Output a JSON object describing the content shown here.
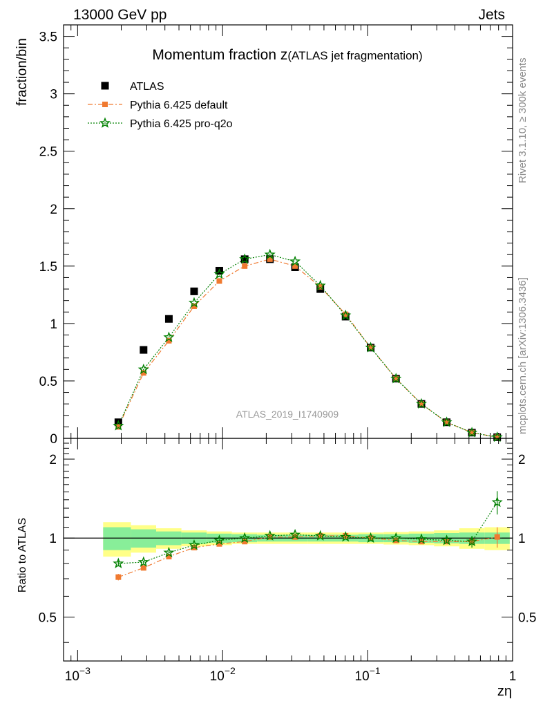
{
  "header": {
    "left": "13000 GeV pp",
    "right": "Jets"
  },
  "side_labels": {
    "rivet": "Rivet 3.1.10, ≥ 300k events",
    "mcplots": "mcplots.cern.ch [arXiv:1306.3436]"
  },
  "chart_data": [
    {
      "type": "scatter",
      "title_main": "Momentum fraction ",
      "title_var": "z",
      "title_sub": "(ATLAS jet fragmentation)",
      "watermark": "ATLAS_2019_I1740909",
      "ylabel": "fraction/bin",
      "xscale": "log",
      "xlim": [
        0.0008,
        1
      ],
      "ylim": [
        0,
        3.6
      ],
      "yticks": [
        "0",
        "0.5",
        "1",
        "1.5",
        "2",
        "2.5",
        "3",
        "3.5"
      ],
      "ytick_values": [
        0,
        0.5,
        1,
        1.5,
        2,
        2.5,
        3,
        3.5
      ],
      "legend_position": "top-left",
      "x": [
        0.00191,
        0.00285,
        0.00426,
        0.00636,
        0.00949,
        0.0142,
        0.0212,
        0.0316,
        0.0472,
        0.0705,
        0.105,
        0.157,
        0.235,
        0.351,
        0.524,
        0.783
      ],
      "series": [
        {
          "name": "ATLAS",
          "color": "#000000",
          "marker": "square",
          "values": [
            0.14,
            0.77,
            1.04,
            1.28,
            1.46,
            1.56,
            1.56,
            1.49,
            1.3,
            1.06,
            0.79,
            0.52,
            0.3,
            0.14,
            0.05,
            0.01
          ]
        },
        {
          "name": "Pythia 6.425 default",
          "color": "#f07a30",
          "marker": "square",
          "line": "dashdot",
          "values": [
            0.1,
            0.57,
            0.85,
            1.15,
            1.37,
            1.5,
            1.56,
            1.5,
            1.32,
            1.08,
            0.79,
            0.52,
            0.3,
            0.14,
            0.05,
            0.01
          ]
        },
        {
          "name": "Pythia 6.425 pro-q2o",
          "color": "#008000",
          "marker": "star",
          "line": "dotted",
          "values": [
            0.11,
            0.6,
            0.88,
            1.18,
            1.43,
            1.56,
            1.6,
            1.54,
            1.33,
            1.07,
            0.79,
            0.52,
            0.3,
            0.14,
            0.05,
            0.01
          ]
        }
      ]
    },
    {
      "type": "scatter",
      "ylabel": "Ratio to ATLAS",
      "xlabel": "zη",
      "xscale": "log",
      "xlim": [
        0.0008,
        1
      ],
      "ylim": [
        0.34,
        2.4
      ],
      "yticks": [
        "0.5",
        "1",
        "2"
      ],
      "ytick_values": [
        0.5,
        1,
        2
      ],
      "yticks_right": [
        "0.5",
        "1",
        "2"
      ],
      "xticks": [
        "10",
        "10",
        "10",
        "1"
      ],
      "xtick_exponents": [
        "−3",
        "−2",
        "−1",
        ""
      ],
      "xtick_values": [
        0.001,
        0.01,
        0.1,
        1
      ],
      "bins": [
        0.0015,
        0.00233,
        0.00348,
        0.0052,
        0.00777,
        0.0116,
        0.0173,
        0.0259,
        0.0386,
        0.0577,
        0.0862,
        0.129,
        0.192,
        0.287,
        0.429,
        0.64,
        0.955
      ],
      "band_inner": [
        0.1,
        0.08,
        0.06,
        0.05,
        0.04,
        0.035,
        0.03,
        0.03,
        0.03,
        0.03,
        0.035,
        0.035,
        0.04,
        0.045,
        0.05,
        0.05
      ],
      "band_outer": [
        0.15,
        0.12,
        0.09,
        0.07,
        0.06,
        0.05,
        0.05,
        0.05,
        0.05,
        0.05,
        0.05,
        0.055,
        0.06,
        0.07,
        0.09,
        0.1
      ],
      "series": [
        {
          "name": "Pythia 6.425 default",
          "color": "#f07a30",
          "values": [
            0.71,
            0.77,
            0.85,
            0.92,
            0.95,
            0.97,
            1.01,
            1.01,
            1.02,
            1.02,
            1.0,
            0.98,
            0.97,
            0.97,
            0.97,
            1.01
          ],
          "errors": [
            0.02,
            0.01,
            0.01,
            0.01,
            0.01,
            0.01,
            0.01,
            0.01,
            0.01,
            0.01,
            0.01,
            0.01,
            0.01,
            0.02,
            0.04,
            0.09
          ]
        },
        {
          "name": "Pythia 6.425 pro-q2o",
          "color": "#008000",
          "values": [
            0.8,
            0.81,
            0.88,
            0.94,
            0.98,
            1.0,
            1.02,
            1.03,
            1.02,
            1.01,
            1.0,
            1.0,
            0.99,
            0.98,
            0.97,
            1.37
          ],
          "errors": [
            0.02,
            0.01,
            0.01,
            0.01,
            0.01,
            0.01,
            0.01,
            0.01,
            0.01,
            0.01,
            0.01,
            0.01,
            0.01,
            0.02,
            0.05,
            0.14
          ]
        }
      ]
    }
  ]
}
